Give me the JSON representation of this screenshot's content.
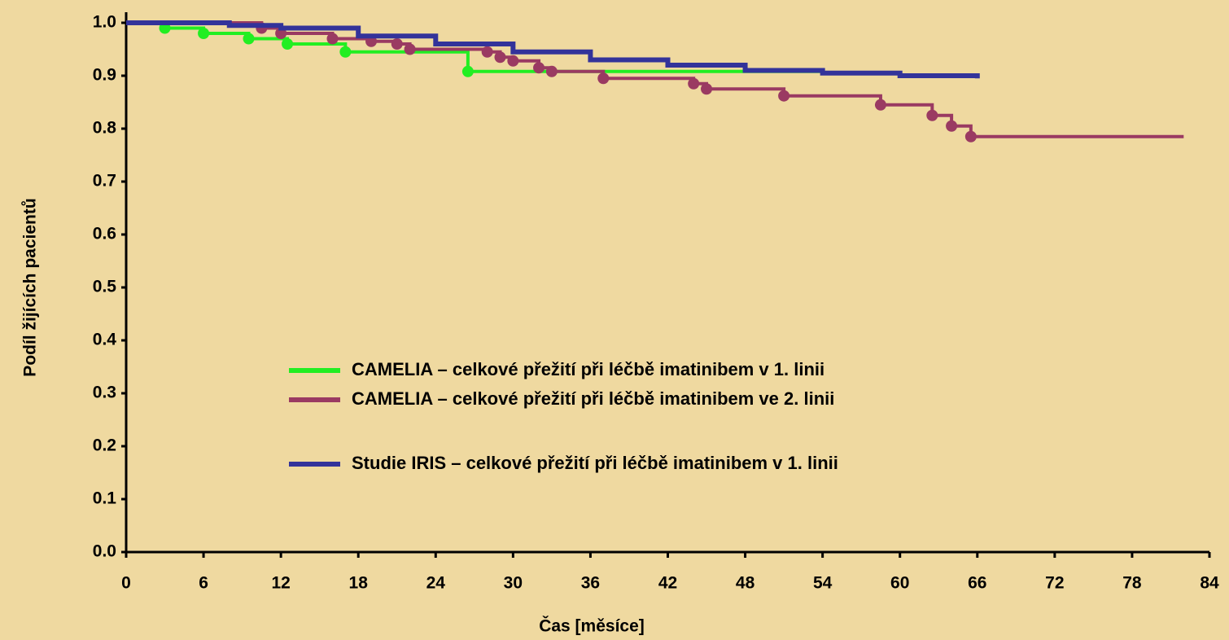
{
  "chart_data": {
    "type": "step",
    "x_label": "Čas [měsíce]",
    "y_label": "Podíl žijících pacientů",
    "xlim": [
      0,
      84
    ],
    "xticks": [
      0,
      6,
      12,
      18,
      24,
      30,
      36,
      42,
      48,
      54,
      60,
      66,
      72,
      78,
      84
    ],
    "ylim": [
      0,
      1
    ],
    "yticks": [
      {
        "value": 0,
        "label": "0.0"
      },
      0.1,
      0.2,
      0.3,
      0.4,
      0.5,
      0.6,
      0.7,
      0.8,
      0.9,
      {
        "value": 1,
        "label": "1.0"
      }
    ],
    "series": [
      {
        "name": "CAMELIA – celkové přežití při léčbě imatinibem v 1. linii",
        "color": "#22ee22",
        "marker": "circle",
        "x": [
          0,
          3,
          6,
          9.5,
          12.5,
          17,
          26.5,
          54
        ],
        "values": [
          1.0,
          0.99,
          0.98,
          0.97,
          0.96,
          0.945,
          0.908,
          0.908
        ]
      },
      {
        "name": "CAMELIA – celkové přežití při léčbě imatinibem ve 2. linii",
        "color": "#9a3a62",
        "marker": "circle",
        "x": [
          0,
          10.5,
          12,
          16,
          19,
          21,
          22,
          28,
          29,
          30,
          32,
          33,
          37,
          44,
          45,
          51,
          58.5,
          62.5,
          64,
          65.5,
          82
        ],
        "values": [
          1.0,
          0.99,
          0.98,
          0.97,
          0.965,
          0.96,
          0.95,
          0.945,
          0.935,
          0.928,
          0.915,
          0.908,
          0.895,
          0.885,
          0.875,
          0.862,
          0.845,
          0.825,
          0.805,
          0.785,
          0.785
        ]
      },
      {
        "name": "Studie IRIS – celkové přežití při léčbě imatinibem v 1. linii",
        "color": "#33339a",
        "marker": "none",
        "x": [
          0,
          8,
          12,
          18,
          24,
          30,
          36,
          42,
          48,
          54,
          60,
          66
        ],
        "values": [
          1.0,
          0.995,
          0.99,
          0.975,
          0.96,
          0.945,
          0.93,
          0.92,
          0.91,
          0.905,
          0.9,
          0.895
        ]
      }
    ]
  }
}
